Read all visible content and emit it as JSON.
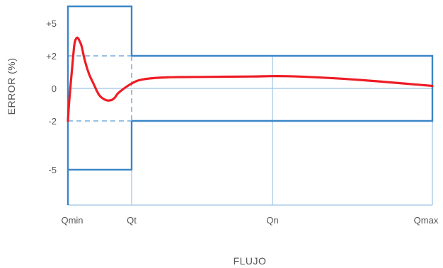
{
  "chart_data": {
    "type": "line",
    "xlabel": "FLUJO",
    "ylabel": "ERROR (%)",
    "x_ticks": [
      "Qmin",
      "Qt",
      "Qn",
      "Qmax"
    ],
    "y_ticks": [
      "+5",
      "+2",
      "0",
      "-2",
      "-5"
    ],
    "colors": {
      "envelope": "#3a86c8",
      "grid": "#9cc3e6",
      "dashed": "#5b9bd5",
      "curve": "#ee1c25"
    },
    "tolerance_envelope": {
      "low_flow_band": [
        "+5",
        "-5"
      ],
      "high_flow_band": [
        "+2",
        "-2"
      ],
      "transition_at": "Qt",
      "dashed_extension": "Qmin to Qt at +2 and -2"
    },
    "series": [
      {
        "style": "solid",
        "x": [
          0.0,
          0.02,
          0.06,
          0.1,
          0.13,
          0.155,
          0.18,
          0.215,
          0.26,
          0.33,
          0.4,
          0.43,
          0.46,
          0.51,
          0.6,
          0.68,
          0.74,
          0.8,
          1.0,
          1.08,
          1.25,
          1.55,
          1.85,
          2.1,
          2.5,
          3.0
        ],
        "y": [
          -2.0,
          -0.8,
          1.0,
          3.0,
          3.6,
          3.65,
          3.4,
          2.9,
          1.8,
          0.9,
          0.3,
          0.05,
          -0.2,
          -0.5,
          -0.72,
          -0.72,
          -0.55,
          -0.25,
          0.3,
          0.55,
          0.68,
          0.71,
          0.73,
          0.75,
          0.55,
          0.15
        ]
      }
    ]
  }
}
